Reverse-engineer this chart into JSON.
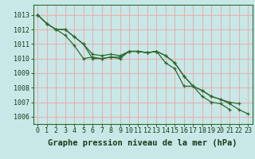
{
  "hours": [
    0,
    1,
    2,
    3,
    4,
    5,
    6,
    7,
    8,
    9,
    10,
    11,
    12,
    13,
    14,
    15,
    16,
    17,
    18,
    19,
    20,
    21,
    22,
    23
  ],
  "line1": [
    1013.0,
    1012.4,
    1012.0,
    1011.6,
    1010.9,
    1010.0,
    1010.1,
    1010.0,
    1010.1,
    1010.1,
    1010.5,
    1010.5,
    1010.4,
    1010.5,
    1009.7,
    1009.3,
    1008.1,
    1008.1,
    1007.4,
    1007.0,
    1006.9,
    1006.5,
    null,
    null
  ],
  "line2": [
    1013.0,
    1012.4,
    1012.0,
    1012.0,
    1011.5,
    1011.0,
    1010.0,
    1010.0,
    1010.1,
    1010.0,
    1010.5,
    1010.5,
    1010.4,
    1010.5,
    1010.2,
    1009.7,
    1008.8,
    1008.1,
    1007.8,
    1007.4,
    1007.2,
    1006.9,
    1006.5,
    1006.2
  ],
  "line3": [
    1013.0,
    1012.4,
    1012.0,
    1012.0,
    1011.5,
    1011.0,
    1010.3,
    1010.2,
    1010.3,
    1010.2,
    1010.5,
    1010.5,
    1010.4,
    1010.5,
    1010.2,
    1009.7,
    1008.8,
    1008.1,
    1007.8,
    1007.4,
    1007.2,
    1007.0,
    1006.9,
    null
  ],
  "bg_color": "#c8e8e8",
  "grid_color": "#e8b0b0",
  "line_color": "#2d6a2d",
  "title": "Graphe pression niveau de la mer (hPa)",
  "ylim_min": 1005.5,
  "ylim_max": 1013.7,
  "yticks": [
    1006,
    1007,
    1008,
    1009,
    1010,
    1011,
    1012,
    1013
  ],
  "title_fontsize": 7.5,
  "tick_fontsize": 6.0
}
